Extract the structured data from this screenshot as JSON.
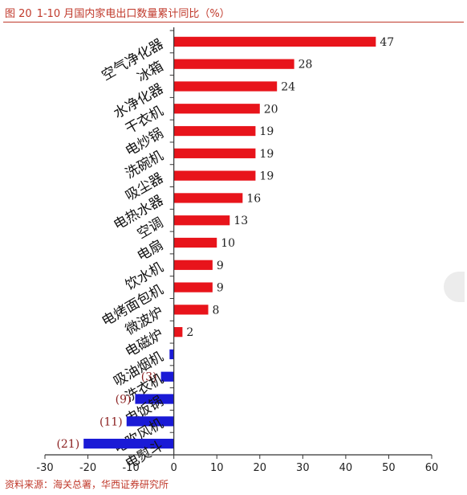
{
  "figure": {
    "number": "图 20",
    "title": "1-10 月国内家电出口数量累计同比（%）"
  },
  "source": "资料来源：海关总署，华西证券研究所",
  "chart_data": {
    "type": "bar",
    "orientation": "horizontal",
    "categories": [
      "空气净化器",
      "冰箱",
      "水净化器",
      "干衣机",
      "电炒锅",
      "洗碗机",
      "吸尘器",
      "电热水器",
      "空调",
      "电扇",
      "饮水机",
      "电烤面包机",
      "微波炉",
      "电磁炉",
      "吸油烟机",
      "洗衣机",
      "电饭锅",
      "电吹风机",
      "电熨斗"
    ],
    "values": [
      47,
      28,
      24,
      20,
      19,
      19,
      19,
      16,
      13,
      10,
      9,
      9,
      8,
      2,
      -1,
      -3,
      -9,
      -11,
      -21
    ],
    "data_labels": [
      "47",
      "28",
      "24",
      "20",
      "19",
      "19",
      "19",
      "16",
      "13",
      "10",
      "9",
      "9",
      "8",
      "2",
      "",
      "(3)",
      "(9)",
      "(11)",
      "(21)"
    ],
    "xlim": [
      -30,
      60
    ],
    "x_ticks": [
      -30,
      -20,
      -10,
      0,
      10,
      20,
      30,
      40,
      50,
      60
    ],
    "x_tick_labels": [
      "-30",
      "-20",
      "-10",
      "0",
      "10",
      "20",
      "30",
      "40",
      "50",
      "60"
    ],
    "colors": {
      "positive": "#e8141b",
      "negative": "#1a1ad6"
    },
    "grid": false,
    "legend": "none"
  }
}
